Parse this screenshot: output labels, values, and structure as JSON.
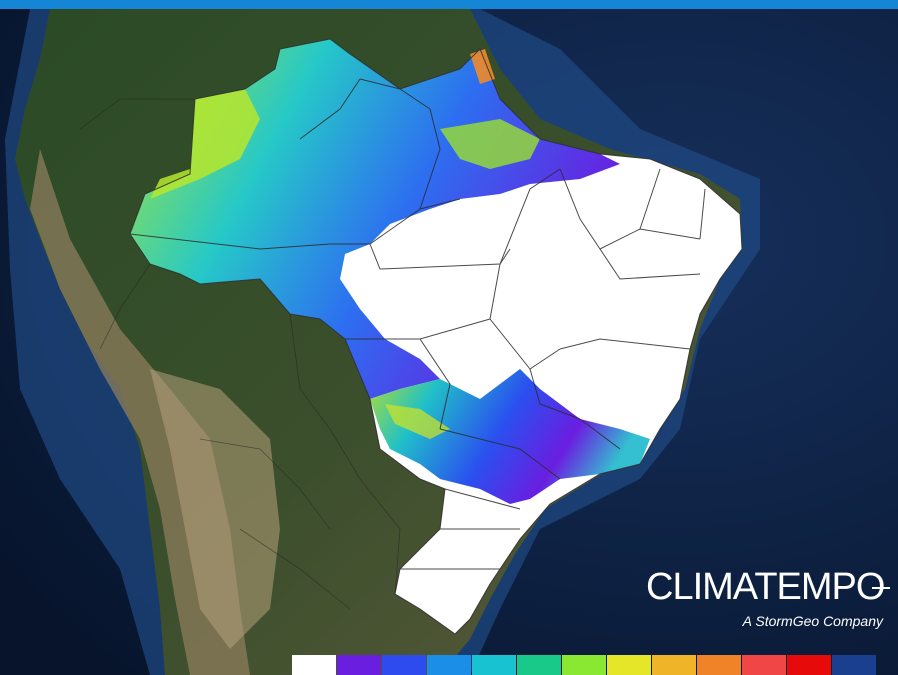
{
  "brand": {
    "name": "CLIMATEMPO",
    "tagline": "A StormGeo Company"
  },
  "colors": {
    "top_bar": "#1585d6",
    "ocean_deep": "#0a1a3a",
    "ocean_shelf": "#2f5f9e",
    "land_forest": "#233e22",
    "land_dry": "#8a7a5a",
    "land_andes": "#b9a37e",
    "state_borders": "#2b2b2b"
  },
  "legend": {
    "swatches": [
      "#ffffff",
      "#6a1ee0",
      "#2d4bef",
      "#1b8ee8",
      "#18c2d0",
      "#18c98a",
      "#8be832",
      "#e6e628",
      "#f0b428",
      "#f08228",
      "#f04646",
      "#e60a0a",
      "#1a3f8e"
    ]
  }
}
